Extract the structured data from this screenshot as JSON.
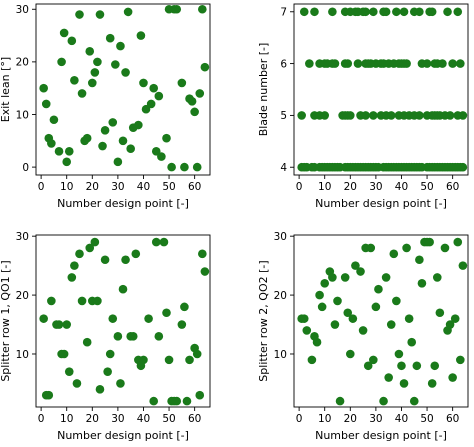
{
  "chart_data": [
    {
      "type": "scatter",
      "xlabel": "Number design point [-]",
      "ylabel": "Exit lean [°]",
      "xlim": [
        -2,
        66
      ],
      "ylim": [
        -1.5,
        31
      ],
      "xticks": [
        0,
        10,
        20,
        30,
        40,
        50,
        60
      ],
      "yticks": [
        0,
        10,
        20,
        30
      ],
      "color": "#1a7a1a",
      "x": [
        1,
        2,
        3,
        4,
        5,
        7,
        8,
        9,
        10,
        11,
        12,
        13,
        15,
        16,
        17,
        18,
        19,
        20,
        21,
        22,
        23,
        24,
        25,
        27,
        28,
        29,
        30,
        31,
        32,
        33,
        34,
        35,
        36,
        38,
        39,
        40,
        41,
        43,
        44,
        45,
        46,
        47,
        49,
        50,
        51,
        52,
        53,
        55,
        56,
        58,
        59,
        60,
        61,
        62,
        63,
        64
      ],
      "y": [
        15,
        12,
        5.5,
        4.5,
        9,
        3,
        20,
        25.5,
        1,
        3,
        24,
        16.5,
        29,
        14,
        5,
        5.5,
        22,
        16,
        18,
        20,
        29,
        4,
        7,
        24.5,
        8.5,
        19.5,
        1,
        23,
        5,
        18,
        29.5,
        3.5,
        7.5,
        8,
        25,
        16,
        11,
        12,
        15,
        3,
        13.5,
        2,
        5.5,
        30,
        0,
        30,
        30,
        16,
        0,
        13,
        12.5,
        10.5,
        0,
        14,
        30,
        19
      ]
    },
    {
      "type": "scatter",
      "xlabel": "Number design point [-]",
      "ylabel": "Blade number [-]",
      "xlim": [
        -2,
        66
      ],
      "ylim": [
        3.85,
        7.15
      ],
      "xticks": [
        0,
        10,
        20,
        30,
        40,
        50,
        60
      ],
      "yticks": [
        4,
        5,
        6,
        7
      ],
      "color": "#1a7a1a",
      "x": [
        1,
        2,
        3,
        5,
        6,
        8,
        9,
        10,
        11,
        12,
        13,
        14,
        15,
        16,
        18,
        19,
        20,
        21,
        22,
        23,
        24,
        25,
        26,
        27,
        28,
        29,
        30,
        31,
        33,
        34,
        35,
        36,
        37,
        38,
        39,
        40,
        41,
        42,
        43,
        44,
        45,
        46,
        47,
        48,
        50,
        51,
        52,
        53,
        54,
        55,
        56,
        57,
        58,
        59,
        60,
        61,
        62,
        63,
        64,
        1,
        6,
        8,
        10,
        17,
        18,
        19,
        20,
        24,
        26,
        29,
        32,
        34,
        36,
        39,
        41,
        43,
        45,
        47,
        50,
        52,
        53,
        54,
        55,
        57,
        59,
        62,
        64,
        4,
        8,
        10,
        11,
        13,
        14,
        18,
        19,
        23,
        26,
        27,
        28,
        30,
        32,
        33,
        35,
        37,
        39,
        40,
        41,
        42,
        48,
        50,
        53,
        54,
        56,
        60,
        63,
        2,
        6,
        13,
        18,
        20,
        22,
        23,
        25,
        26,
        29,
        33,
        34,
        38,
        41,
        45,
        47,
        51,
        52,
        58,
        62
      ],
      "y": [
        4,
        4,
        4,
        4,
        4,
        4,
        4,
        4,
        4,
        4,
        4,
        4,
        4,
        4,
        4,
        4,
        4,
        4,
        4,
        4,
        4,
        4,
        4,
        4,
        4,
        4,
        4,
        4,
        4,
        4,
        4,
        4,
        4,
        4,
        4,
        4,
        4,
        4,
        4,
        4,
        4,
        4,
        4,
        4,
        4,
        4,
        4,
        4,
        4,
        4,
        4,
        4,
        4,
        4,
        4,
        4,
        4,
        4,
        4,
        5,
        5,
        5,
        5,
        5,
        5,
        5,
        5,
        5,
        5,
        5,
        5,
        5,
        5,
        5,
        5,
        5,
        5,
        5,
        5,
        5,
        5,
        5,
        5,
        5,
        5,
        5,
        5,
        6,
        6,
        6,
        6,
        6,
        6,
        6,
        6,
        6,
        6,
        6,
        6,
        6,
        6,
        6,
        6,
        6,
        6,
        6,
        6,
        6,
        6,
        6,
        6,
        6,
        6,
        6,
        6,
        7,
        7,
        7,
        7,
        7,
        7,
        7,
        7,
        7,
        7,
        7,
        7,
        7,
        7,
        7,
        7,
        7,
        7,
        7,
        7
      ]
    },
    {
      "type": "scatter",
      "xlabel": "Number design point [-]",
      "ylabel": "Splitter row 1, QO1 [-]",
      "xlim": [
        -2,
        66
      ],
      "ylim": [
        1,
        30.2
      ],
      "xticks": [
        0,
        10,
        20,
        30,
        40,
        50,
        60
      ],
      "yticks": [
        10,
        20,
        30
      ],
      "color": "#1a7a1a",
      "x": [
        1,
        2,
        3,
        4,
        6,
        7,
        8,
        9,
        10,
        11,
        12,
        13,
        14,
        15,
        16,
        18,
        19,
        20,
        21,
        22,
        23,
        25,
        26,
        27,
        28,
        30,
        31,
        32,
        33,
        35,
        36,
        37,
        38,
        39,
        40,
        42,
        44,
        45,
        46,
        48,
        49,
        50,
        51,
        52,
        53,
        55,
        56,
        57,
        58,
        60,
        61,
        62,
        63,
        64
      ],
      "y": [
        16,
        3,
        3,
        19,
        15,
        15,
        10,
        10,
        15,
        7,
        23,
        25,
        5,
        27,
        19,
        12,
        28,
        19,
        29,
        19,
        4,
        26,
        7,
        10,
        16,
        13,
        5,
        21,
        26,
        13,
        13,
        27,
        9,
        8,
        9,
        16,
        2,
        29,
        13,
        29,
        17,
        9,
        2,
        2,
        2,
        15,
        18,
        2,
        9,
        11,
        10,
        3,
        27,
        24
      ]
    },
    {
      "type": "scatter",
      "xlabel": "Number design point [-]",
      "ylabel": "Splitter row 2, QO2 [-]",
      "xlim": [
        -2,
        66
      ],
      "ylim": [
        1,
        30.2
      ],
      "xticks": [
        0,
        10,
        20,
        30,
        40,
        50,
        60
      ],
      "yticks": [
        10,
        20,
        30
      ],
      "color": "#1a7a1a",
      "x": [
        1,
        2,
        3,
        5,
        6,
        7,
        8,
        9,
        10,
        12,
        13,
        14,
        15,
        16,
        18,
        19,
        20,
        21,
        22,
        24,
        25,
        26,
        27,
        28,
        29,
        30,
        31,
        33,
        34,
        35,
        36,
        37,
        38,
        39,
        40,
        41,
        42,
        43,
        44,
        45,
        46,
        47,
        48,
        49,
        50,
        51,
        52,
        53,
        54,
        55,
        57,
        58,
        59,
        60,
        61,
        62,
        63,
        64
      ],
      "y": [
        16,
        16,
        14,
        9,
        13,
        12,
        20,
        18,
        22,
        24,
        23,
        15,
        19,
        2,
        23,
        17,
        10,
        16,
        25,
        24,
        14,
        28,
        8,
        28,
        9,
        18,
        21,
        2,
        23,
        6,
        15,
        27,
        19,
        10,
        8,
        5,
        28,
        16,
        12,
        2,
        8,
        26,
        22,
        29,
        29,
        29,
        5,
        8,
        23,
        17,
        28,
        14,
        15,
        6,
        16,
        29,
        9,
        25
      ]
    }
  ]
}
